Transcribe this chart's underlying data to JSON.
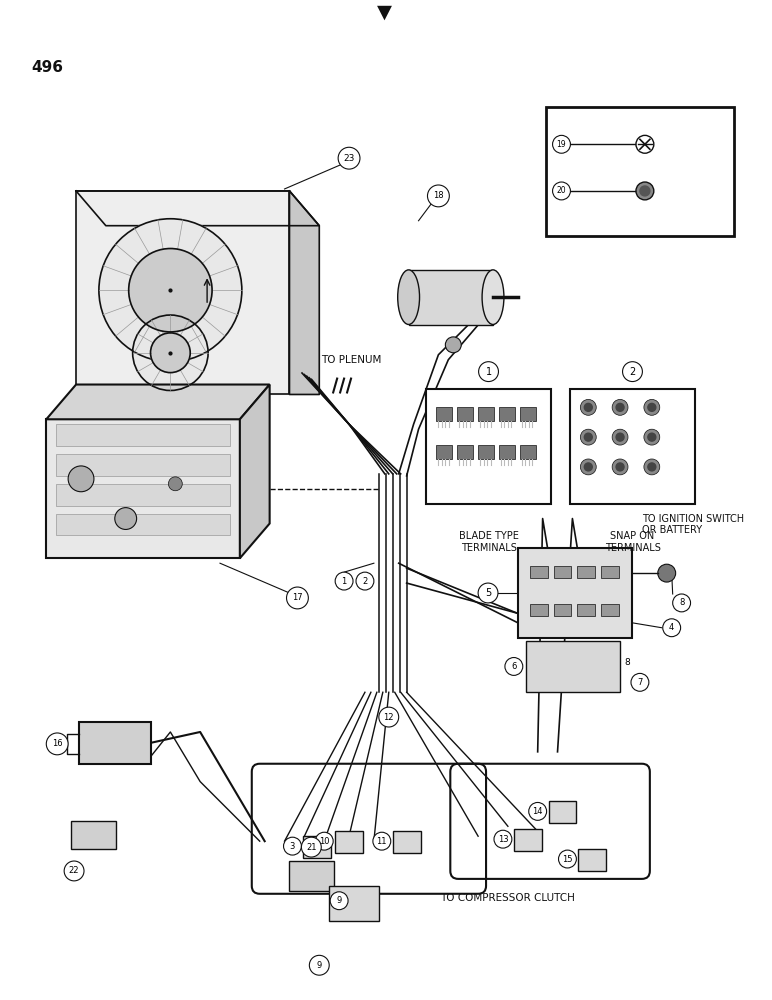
{
  "page_number": "496",
  "background_color": "#ffffff",
  "labels": {
    "to_plenum": "TO PLENUM",
    "blade_type": "BLADE TYPE\nTERMINALS",
    "snap_on": "SNAP ON\nTERMINALS",
    "to_ignition": "TO IGNITION SWITCH\nOR BATTERY",
    "to_compressor": "TO COMPRESSOR CLUTCH"
  },
  "figsize": [
    7.72,
    10.0
  ],
  "dpi": 100
}
